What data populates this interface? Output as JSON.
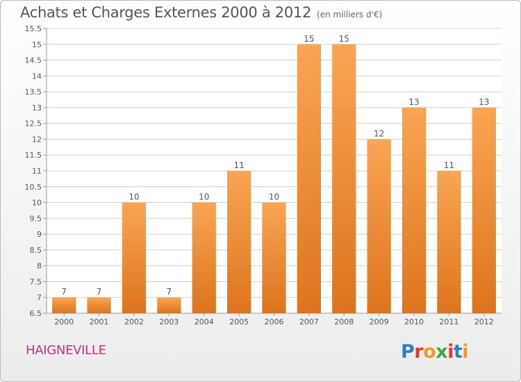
{
  "chart_title": "Achats et Charges Externes 2000 à 2012",
  "chart_unit": "(en milliers d'€)",
  "commune": "HAIGNEVILLE",
  "logo": {
    "text": "Proxiti",
    "letters": [
      {
        "ch": "P",
        "color": "#2f7fc1"
      },
      {
        "ch": "r",
        "color": "#e8372e"
      },
      {
        "ch": "o",
        "color": "#f39a1e"
      },
      {
        "ch": "x",
        "color": "#3aa935"
      },
      {
        "ch": "i",
        "color": "#e8372e"
      },
      {
        "ch": "t",
        "color": "#2f7fc1"
      },
      {
        "ch": "i",
        "color": "#f39a1e"
      }
    ]
  },
  "colors": {
    "bar_top": "#f9a553",
    "bar_bottom": "#dd741d",
    "grid": "#d0d0d0",
    "axis": "#999999",
    "text": "#555555"
  },
  "chart_data": {
    "type": "bar",
    "categories": [
      "2000",
      "2001",
      "2002",
      "2003",
      "2004",
      "2005",
      "2006",
      "2007",
      "2008",
      "2009",
      "2010",
      "2011",
      "2012"
    ],
    "values": [
      7,
      7,
      10,
      7,
      10,
      11,
      10,
      15,
      15,
      12,
      13,
      11,
      13
    ],
    "value_labels": [
      "7",
      "7",
      "10",
      "7",
      "10",
      "11",
      "10",
      "15",
      "15",
      "12",
      "13",
      "11",
      "13"
    ],
    "ylim": [
      6.5,
      15.5
    ],
    "yticks": [
      6.5,
      7,
      7.5,
      8,
      8.5,
      9,
      9.5,
      10,
      10.5,
      11,
      11.5,
      12,
      12.5,
      13,
      13.5,
      14,
      14.5,
      15,
      15.5
    ],
    "ytick_labels": [
      "6.5",
      "7",
      "7.5",
      "8",
      "8.5",
      "9",
      "9.5",
      "10",
      "10.5",
      "11",
      "11.5",
      "12",
      "12.5",
      "13",
      "13.5",
      "14",
      "14.5",
      "15",
      "15.5"
    ],
    "grid": true,
    "legend": "none",
    "xlabel": "",
    "ylabel": ""
  }
}
